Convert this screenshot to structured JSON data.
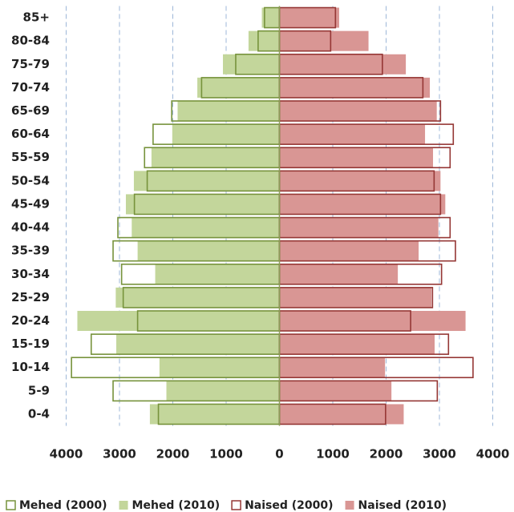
{
  "chart_data": {
    "type": "pyramid",
    "categories": [
      "0-4",
      "5-9",
      "10-14",
      "15-19",
      "20-24",
      "25-29",
      "30-34",
      "35-39",
      "40-44",
      "45-49",
      "50-54",
      "55-59",
      "60-64",
      "65-69",
      "70-74",
      "75-79",
      "80-84",
      "85+"
    ],
    "series": [
      {
        "name": "Mehed (2000)",
        "color": "#77933c",
        "style": "outline",
        "values": [
          -2270,
          -3120,
          -3900,
          -3530,
          -2660,
          -2930,
          -2960,
          -3120,
          -3030,
          -2720,
          -2480,
          -2530,
          -2370,
          -2020,
          -1460,
          -820,
          -400,
          -280
        ]
      },
      {
        "name": "Mehed (2010)",
        "color": "#c3d69b",
        "style": "filled",
        "values": [
          -2430,
          -2120,
          -2250,
          -3060,
          -3790,
          -3070,
          -2330,
          -2660,
          -2770,
          -2880,
          -2730,
          -2400,
          -2010,
          -1910,
          -1540,
          -1060,
          -580,
          -330
        ]
      },
      {
        "name": "Naised (2000)",
        "color": "#953735",
        "style": "outline",
        "values": [
          1990,
          2960,
          3630,
          3170,
          2460,
          2870,
          3040,
          3300,
          3200,
          3020,
          2900,
          3200,
          3260,
          3020,
          2690,
          1930,
          960,
          1050
        ]
      },
      {
        "name": "Naised (2010)",
        "color": "#d99694",
        "style": "filled",
        "values": [
          2330,
          2100,
          1980,
          2910,
          3490,
          2850,
          2220,
          2610,
          2980,
          3110,
          3020,
          2880,
          2730,
          2950,
          2820,
          2370,
          1670,
          1120
        ]
      }
    ],
    "xlim": [
      -4000,
      4000
    ],
    "xticks": [
      {
        "value": -4000,
        "label": "4000"
      },
      {
        "value": -3000,
        "label": "3000"
      },
      {
        "value": -2000,
        "label": "2000"
      },
      {
        "value": -1000,
        "label": "1000"
      },
      0,
      1000,
      2000,
      3000,
      4000
    ],
    "grid": true,
    "legend": "bottom"
  }
}
